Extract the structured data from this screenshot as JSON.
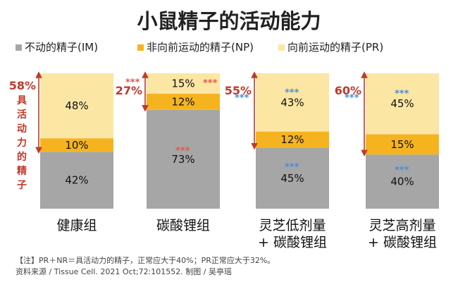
{
  "chart_data": {
    "type": "bar",
    "stacked": true,
    "title": "小鼠精子的活动能力",
    "categories": [
      [
        "健康组"
      ],
      [
        "碳酸锂组"
      ],
      [
        "灵芝低剂量",
        "+ 碳酸锂组"
      ],
      [
        "灵芝高剂量",
        "+ 碳酸锂组"
      ]
    ],
    "series": [
      {
        "name": "不动的精子(IM)",
        "color": "#a6a6a6",
        "values": [
          42,
          73,
          45,
          40
        ]
      },
      {
        "name": "非向前运动的精子(NP)",
        "color": "#f5b41f",
        "values": [
          10,
          12,
          12,
          15
        ]
      },
      {
        "name": "向前运动的精子(PR)",
        "color": "#fce6a4",
        "values": [
          48,
          15,
          43,
          45
        ]
      }
    ],
    "value_labels": [
      [
        "42%",
        "10%",
        "48%"
      ],
      [
        "73%",
        "12%",
        "15%"
      ],
      [
        "45%",
        "12%",
        "43%"
      ],
      [
        "40%",
        "15%",
        "45%"
      ]
    ],
    "active_totals": [
      "58%",
      "27%",
      "55%",
      "60%"
    ],
    "active_label_chars": [
      "具",
      "活",
      "动",
      "力",
      "的",
      "精",
      "子"
    ],
    "significance": "***",
    "ylim": [
      0,
      100
    ],
    "legend_position": "top",
    "grid": false,
    "notes": [
      "【注】PR＋NR＝具活动力的精子，正常应大于40%；PR正常应大于32%。",
      "资料来源 / Tissue Cell. 2021 Oct;72:101552.     制图 / 吴亭瑶"
    ]
  },
  "colors": {
    "arrow": "#c0392b",
    "star_red": "#e05a4f",
    "star_blue": "#4a8fd6"
  }
}
